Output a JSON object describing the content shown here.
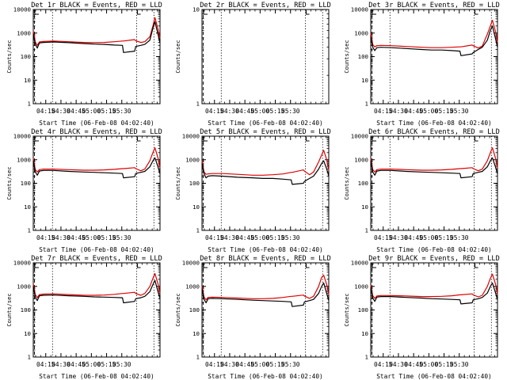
{
  "colors": {
    "events": "#000000",
    "lld": "#dd0000",
    "background": "#ffffff"
  },
  "chart_data": [
    {
      "type": "line",
      "title": "Det 1r BLACK = Events, RED = LLD",
      "xlabel": "Start Time (06-Feb-08 04:02:40)",
      "ylabel": "Counts/sec",
      "x_ticks": [
        "04:15",
        "04:30",
        "04:45",
        "05:00",
        "05:15",
        "05:30"
      ],
      "y_ticks": [
        "1",
        "10",
        "100",
        "1000",
        "10000"
      ],
      "ylim": [
        1,
        10000
      ],
      "yscale": "log",
      "series": [
        {
          "name": "Events",
          "x": [
            0,
            2,
            4,
            6,
            10,
            20,
            35,
            50,
            60,
            70,
            80,
            88,
            89,
            100,
            101,
            106,
            110,
            115,
            118,
            120,
            123,
            125
          ],
          "y": [
            900,
            330,
            230,
            380,
            400,
            420,
            390,
            360,
            340,
            330,
            310,
            300,
            150,
            170,
            270,
            300,
            330,
            500,
            1600,
            3000,
            900,
            380
          ]
        },
        {
          "name": "LLD",
          "x": [
            0,
            2,
            4,
            6,
            10,
            20,
            35,
            50,
            60,
            70,
            80,
            88,
            89,
            100,
            101,
            106,
            110,
            115,
            118,
            120,
            123,
            125
          ],
          "y": [
            1200,
            420,
            300,
            420,
            440,
            460,
            430,
            400,
            390,
            400,
            430,
            460,
            460,
            530,
            470,
            400,
            430,
            700,
            2000,
            4500,
            1500,
            600
          ]
        }
      ]
    },
    {
      "type": "line",
      "title": "Det 2r BLACK = Events, RED = LLD",
      "xlabel": "Start Time (06-Feb-08 04:02:40)",
      "ylabel": "Counts/sec",
      "x_ticks": [
        "04:15",
        "04:30",
        "04:45",
        "05:00",
        "05:15",
        "05:30"
      ],
      "y_ticks": [
        "1",
        "10"
      ],
      "ylim": [
        1,
        10
      ],
      "yscale": "log",
      "series": []
    },
    {
      "type": "line",
      "title": "Det 3r BLACK = Events, RED = LLD",
      "xlabel": "Start Time (06-Feb-08 04:02:40)",
      "ylabel": "Counts/sec",
      "x_ticks": [
        "04:15",
        "04:30",
        "04:45",
        "05:00",
        "05:15",
        "05:30"
      ],
      "y_ticks": [
        "1",
        "10",
        "100",
        "1000",
        "10000"
      ],
      "ylim": [
        1,
        10000
      ],
      "yscale": "log",
      "series": [
        {
          "name": "Events",
          "x": [
            0,
            2,
            4,
            6,
            10,
            20,
            35,
            50,
            60,
            70,
            80,
            88,
            89,
            100,
            101,
            106,
            110,
            115,
            118,
            120,
            123,
            125
          ],
          "y": [
            700,
            250,
            180,
            240,
            250,
            240,
            220,
            200,
            190,
            190,
            180,
            170,
            110,
            130,
            150,
            200,
            250,
            500,
            1300,
            2000,
            600,
            250
          ]
        },
        {
          "name": "LLD",
          "x": [
            0,
            2,
            4,
            6,
            10,
            20,
            35,
            50,
            60,
            70,
            80,
            88,
            89,
            100,
            101,
            106,
            110,
            115,
            118,
            120,
            123,
            125
          ],
          "y": [
            1000,
            320,
            260,
            290,
            300,
            290,
            270,
            250,
            240,
            240,
            250,
            260,
            260,
            310,
            290,
            230,
            280,
            900,
            2000,
            3500,
            1200,
            400
          ]
        }
      ]
    },
    {
      "type": "line",
      "title": "Det 4r BLACK = Events, RED = LLD",
      "xlabel": "Start Time (06-Feb-08 04:02:40)",
      "ylabel": "Counts/sec",
      "x_ticks": [
        "04:15",
        "04:30",
        "04:45",
        "05:00",
        "05:15",
        "05:30"
      ],
      "y_ticks": [
        "1",
        "10",
        "100",
        "1000",
        "10000"
      ],
      "ylim": [
        1,
        10000
      ],
      "yscale": "log",
      "series": [
        {
          "name": "Events",
          "x": [
            0,
            2,
            4,
            6,
            10,
            20,
            35,
            50,
            60,
            70,
            80,
            88,
            89,
            100,
            101,
            106,
            110,
            115,
            118,
            120,
            123,
            125
          ],
          "y": [
            900,
            300,
            220,
            330,
            350,
            350,
            320,
            300,
            290,
            280,
            270,
            260,
            170,
            190,
            260,
            290,
            320,
            500,
            900,
            1200,
            500,
            250
          ]
        },
        {
          "name": "LLD",
          "x": [
            0,
            2,
            4,
            6,
            10,
            20,
            35,
            50,
            60,
            70,
            80,
            88,
            89,
            100,
            101,
            106,
            110,
            115,
            118,
            120,
            123,
            125
          ],
          "y": [
            1100,
            380,
            300,
            380,
            400,
            400,
            380,
            360,
            360,
            370,
            390,
            420,
            420,
            460,
            420,
            340,
            400,
            900,
            2000,
            3200,
            1200,
            450
          ]
        }
      ]
    },
    {
      "type": "line",
      "title": "Det 5r BLACK = Events, RED = LLD",
      "xlabel": "Start Time (06-Feb-08 04:02:40)",
      "ylabel": "Counts/sec",
      "x_ticks": [
        "04:15",
        "04:30",
        "04:45",
        "05:00",
        "05:15",
        "05:30"
      ],
      "y_ticks": [
        "1",
        "10",
        "100",
        "1000",
        "10000"
      ],
      "ylim": [
        1,
        10000
      ],
      "yscale": "log",
      "series": [
        {
          "name": "Events",
          "x": [
            0,
            2,
            4,
            6,
            10,
            20,
            35,
            50,
            60,
            70,
            80,
            88,
            89,
            100,
            101,
            106,
            110,
            115,
            118,
            120,
            123,
            125
          ],
          "y": [
            700,
            250,
            170,
            200,
            210,
            200,
            180,
            170,
            160,
            160,
            150,
            140,
            90,
            100,
            120,
            160,
            200,
            400,
            700,
            900,
            400,
            200
          ]
        },
        {
          "name": "LLD",
          "x": [
            0,
            2,
            4,
            6,
            10,
            20,
            35,
            50,
            60,
            70,
            80,
            88,
            89,
            100,
            101,
            106,
            110,
            115,
            118,
            120,
            123,
            125
          ],
          "y": [
            900,
            300,
            240,
            250,
            260,
            260,
            240,
            220,
            220,
            230,
            250,
            290,
            290,
            370,
            330,
            230,
            300,
            800,
            1600,
            2500,
            1000,
            350
          ]
        }
      ]
    },
    {
      "type": "line",
      "title": "Det 6r BLACK = Events, RED = LLD",
      "xlabel": "Start Time (06-Feb-08 04:02:40)",
      "ylabel": "Counts/sec",
      "x_ticks": [
        "04:15",
        "04:30",
        "04:45",
        "05:00",
        "05:15",
        "05:30"
      ],
      "y_ticks": [
        "1",
        "10",
        "100",
        "1000",
        "10000"
      ],
      "ylim": [
        1,
        10000
      ],
      "yscale": "log",
      "series": [
        {
          "name": "Events",
          "x": [
            0,
            2,
            4,
            6,
            10,
            20,
            35,
            50,
            60,
            70,
            80,
            88,
            89,
            100,
            101,
            106,
            110,
            115,
            118,
            120,
            123,
            125
          ],
          "y": [
            900,
            300,
            220,
            330,
            350,
            350,
            320,
            300,
            290,
            280,
            270,
            260,
            170,
            190,
            260,
            290,
            320,
            500,
            900,
            1200,
            500,
            250
          ]
        },
        {
          "name": "LLD",
          "x": [
            0,
            2,
            4,
            6,
            10,
            20,
            35,
            50,
            60,
            70,
            80,
            88,
            89,
            100,
            101,
            106,
            110,
            115,
            118,
            120,
            123,
            125
          ],
          "y": [
            1100,
            380,
            300,
            380,
            400,
            400,
            380,
            360,
            360,
            370,
            390,
            420,
            420,
            460,
            420,
            340,
            400,
            900,
            2000,
            3200,
            1200,
            450
          ]
        }
      ]
    },
    {
      "type": "line",
      "title": "Det 7r BLACK = Events, RED = LLD",
      "xlabel": "Start Time (06-Feb-08 04:02:40)",
      "ylabel": "Counts/sec",
      "x_ticks": [
        "04:15",
        "04:30",
        "04:45",
        "05:00",
        "05:15",
        "05:30"
      ],
      "y_ticks": [
        "1",
        "10",
        "100",
        "1000",
        "10000"
      ],
      "ylim": [
        1,
        10000
      ],
      "yscale": "log",
      "series": [
        {
          "name": "Events",
          "x": [
            0,
            2,
            4,
            6,
            10,
            20,
            35,
            50,
            60,
            70,
            80,
            88,
            89,
            100,
            101,
            106,
            110,
            115,
            118,
            120,
            123,
            125
          ],
          "y": [
            1000,
            340,
            250,
            400,
            420,
            430,
            400,
            380,
            360,
            350,
            340,
            330,
            200,
            230,
            300,
            330,
            380,
            600,
            1200,
            1800,
            600,
            300
          ]
        },
        {
          "name": "LLD",
          "x": [
            0,
            2,
            4,
            6,
            10,
            20,
            35,
            50,
            60,
            70,
            80,
            88,
            89,
            100,
            101,
            106,
            110,
            115,
            118,
            120,
            123,
            125
          ],
          "y": [
            1300,
            450,
            330,
            450,
            470,
            480,
            450,
            420,
            420,
            430,
            460,
            500,
            500,
            560,
            500,
            420,
            500,
            1000,
            2200,
            3500,
            1300,
            500
          ]
        }
      ]
    },
    {
      "type": "line",
      "title": "Det 8r BLACK = Events, RED = LLD",
      "xlabel": "Start Time (06-Feb-08 04:02:40)",
      "ylabel": "Counts/sec",
      "x_ticks": [
        "04:15",
        "04:30",
        "04:45",
        "05:00",
        "05:15",
        "05:30"
      ],
      "y_ticks": [
        "1",
        "10",
        "100",
        "1000",
        "10000"
      ],
      "ylim": [
        1,
        10000
      ],
      "yscale": "log",
      "series": [
        {
          "name": "Events",
          "x": [
            0,
            2,
            4,
            6,
            10,
            20,
            35,
            50,
            60,
            70,
            80,
            88,
            89,
            100,
            101,
            106,
            110,
            115,
            118,
            120,
            123,
            125
          ],
          "y": [
            800,
            280,
            200,
            300,
            310,
            300,
            280,
            260,
            250,
            240,
            230,
            220,
            140,
            160,
            220,
            250,
            280,
            500,
            1000,
            1400,
            500,
            250
          ]
        },
        {
          "name": "LLD",
          "x": [
            0,
            2,
            4,
            6,
            10,
            20,
            35,
            50,
            60,
            70,
            80,
            88,
            89,
            100,
            101,
            106,
            110,
            115,
            118,
            120,
            123,
            125
          ],
          "y": [
            1000,
            350,
            270,
            340,
            350,
            340,
            320,
            300,
            300,
            310,
            340,
            380,
            380,
            430,
            390,
            310,
            380,
            1000,
            2400,
            3000,
            1200,
            450
          ]
        }
      ]
    },
    {
      "type": "line",
      "title": "Det 9r BLACK = Events, RED = LLD",
      "xlabel": "Start Time (06-Feb-08 04:02:40)",
      "ylabel": "Counts/sec",
      "x_ticks": [
        "04:15",
        "04:30",
        "04:45",
        "05:00",
        "05:15",
        "05:30"
      ],
      "y_ticks": [
        "1",
        "10",
        "100",
        "1000",
        "10000"
      ],
      "ylim": [
        1,
        10000
      ],
      "yscale": "log",
      "series": [
        {
          "name": "Events",
          "x": [
            0,
            2,
            4,
            6,
            10,
            20,
            35,
            50,
            60,
            70,
            80,
            88,
            89,
            100,
            101,
            106,
            110,
            115,
            118,
            120,
            123,
            125
          ],
          "y": [
            900,
            320,
            230,
            350,
            370,
            370,
            340,
            320,
            300,
            290,
            280,
            270,
            180,
            200,
            270,
            300,
            340,
            520,
            1000,
            1400,
            550,
            270
          ]
        },
        {
          "name": "LLD",
          "x": [
            0,
            2,
            4,
            6,
            10,
            20,
            35,
            50,
            60,
            70,
            80,
            88,
            89,
            100,
            101,
            106,
            110,
            115,
            118,
            120,
            123,
            125
          ],
          "y": [
            1100,
            400,
            310,
            390,
            410,
            410,
            390,
            370,
            370,
            380,
            400,
            440,
            440,
            480,
            440,
            360,
            420,
            1000,
            2200,
            3300,
            1300,
            480
          ]
        }
      ]
    }
  ]
}
